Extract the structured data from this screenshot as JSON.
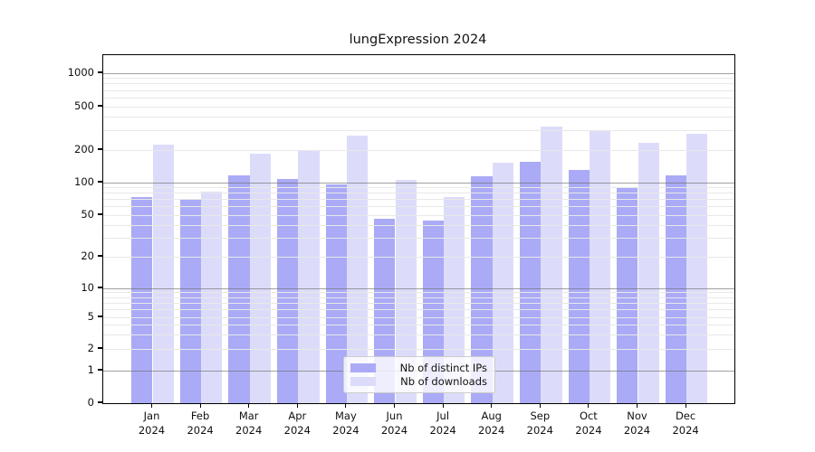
{
  "title": "lungExpression 2024",
  "colors": {
    "distinct_ips": "#aaaaf7",
    "downloads": "#dcdcfa",
    "grid_major": "#b0b0b0",
    "grid_minor": "#e8e8e8",
    "axis": "#000000"
  },
  "legend": {
    "items": [
      {
        "label": "Nb of distinct IPs",
        "color_key": "distinct_ips"
      },
      {
        "label": "Nb of downloads",
        "color_key": "downloads"
      }
    ]
  },
  "y_axis": {
    "tick_labels": [
      "1000",
      "500",
      "200",
      "100",
      "50",
      "20",
      "10",
      "5",
      "2",
      "1",
      "0"
    ]
  },
  "x_axis": {
    "months": [
      {
        "month": "Jan",
        "year": "2024"
      },
      {
        "month": "Feb",
        "year": "2024"
      },
      {
        "month": "Mar",
        "year": "2024"
      },
      {
        "month": "Apr",
        "year": "2024"
      },
      {
        "month": "May",
        "year": "2024"
      },
      {
        "month": "Jun",
        "year": "2024"
      },
      {
        "month": "Jul",
        "year": "2024"
      },
      {
        "month": "Aug",
        "year": "2024"
      },
      {
        "month": "Sep",
        "year": "2024"
      },
      {
        "month": "Oct",
        "year": "2024"
      },
      {
        "month": "Nov",
        "year": "2024"
      },
      {
        "month": "Dec",
        "year": "2024"
      }
    ]
  },
  "chart_data": {
    "type": "bar",
    "title": "lungExpression 2024",
    "categories": [
      "Jan 2024",
      "Feb 2024",
      "Mar 2024",
      "Apr 2024",
      "May 2024",
      "Jun 2024",
      "Jul 2024",
      "Aug 2024",
      "Sep 2024",
      "Oct 2024",
      "Nov 2024",
      "Dec 2024"
    ],
    "series": [
      {
        "name": "Nb of distinct IPs",
        "values": [
          73,
          70,
          117,
          108,
          97,
          46,
          44,
          115,
          157,
          130,
          90,
          116
        ]
      },
      {
        "name": "Nb of downloads",
        "values": [
          226,
          83,
          184,
          201,
          270,
          106,
          73,
          153,
          328,
          297,
          231,
          283
        ]
      }
    ],
    "xlabel": "",
    "ylabel": "",
    "yscale": "log (with 0 baseline)",
    "y_ticks": [
      0,
      1,
      2,
      5,
      10,
      20,
      50,
      100,
      200,
      500,
      1000
    ],
    "ylim": [
      0,
      1450
    ],
    "grid": "horizontal major (decades, dark) + minor (light), drawn over bars",
    "legend_position": "lower center"
  }
}
